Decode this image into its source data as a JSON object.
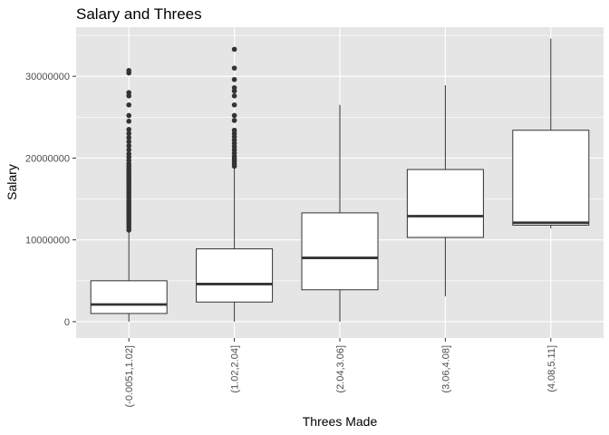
{
  "chart_data": {
    "type": "boxplot",
    "title": "Salary and Threes",
    "xlabel": "Threes Made",
    "ylabel": "Salary",
    "ylim": [
      -2000000,
      36000000
    ],
    "y_ticks": [
      0,
      10000000,
      20000000,
      30000000
    ],
    "y_tick_labels": [
      "0",
      "10000000",
      "20000000",
      "30000000"
    ],
    "grid": true,
    "colors": {
      "panel": "#e5e5e5",
      "grid": "#ffffff",
      "box_fill": "#ffffff",
      "box_stroke": "#333333",
      "outlier": "#333333"
    },
    "categories": [
      "(-0.0051,1.02]",
      "(1.02,2.04]",
      "(2.04,3.06]",
      "(3.06,4.08]",
      "(4.08,5.11]"
    ],
    "boxes": [
      {
        "category": "(-0.0051,1.02]",
        "min": 0,
        "q1": 1000000,
        "median": 2100000,
        "q3": 5000000,
        "max": 11000000,
        "outliers": [
          11200000,
          11500000,
          11800000,
          12100000,
          12400000,
          12700000,
          13000000,
          13300000,
          13600000,
          13900000,
          14200000,
          14500000,
          14800000,
          15100000,
          15400000,
          15700000,
          16000000,
          16300000,
          16600000,
          16900000,
          17200000,
          17500000,
          17800000,
          18100000,
          18400000,
          18700000,
          19000000,
          19300000,
          19700000,
          20100000,
          20500000,
          21000000,
          21500000,
          22000000,
          22500000,
          23000000,
          23500000,
          24500000,
          25200000,
          26500000,
          27600000,
          28000000,
          30400000,
          30700000
        ]
      },
      {
        "category": "(1.02,2.04]",
        "min": 0,
        "q1": 2400000,
        "median": 4600000,
        "q3": 8900000,
        "max": 18800000,
        "outliers": [
          19000000,
          19300000,
          19600000,
          19900000,
          20200000,
          20600000,
          21000000,
          21400000,
          21800000,
          22200000,
          22600000,
          23000000,
          23400000,
          24600000,
          25200000,
          26500000,
          27600000,
          28200000,
          28600000,
          29600000,
          31000000,
          33300000
        ]
      },
      {
        "category": "(2.04,3.06]",
        "min": 0,
        "q1": 3900000,
        "median": 7800000,
        "q3": 13300000,
        "max": 26500000,
        "outliers": []
      },
      {
        "category": "(3.06,4.08]",
        "min": 3100000,
        "q1": 10300000,
        "median": 12900000,
        "q3": 18600000,
        "max": 28900000,
        "outliers": []
      },
      {
        "category": "(4.08,5.11]",
        "min": 11400000,
        "q1": 11800000,
        "median": 12100000,
        "q3": 23400000,
        "max": 34600000,
        "outliers": []
      }
    ]
  }
}
